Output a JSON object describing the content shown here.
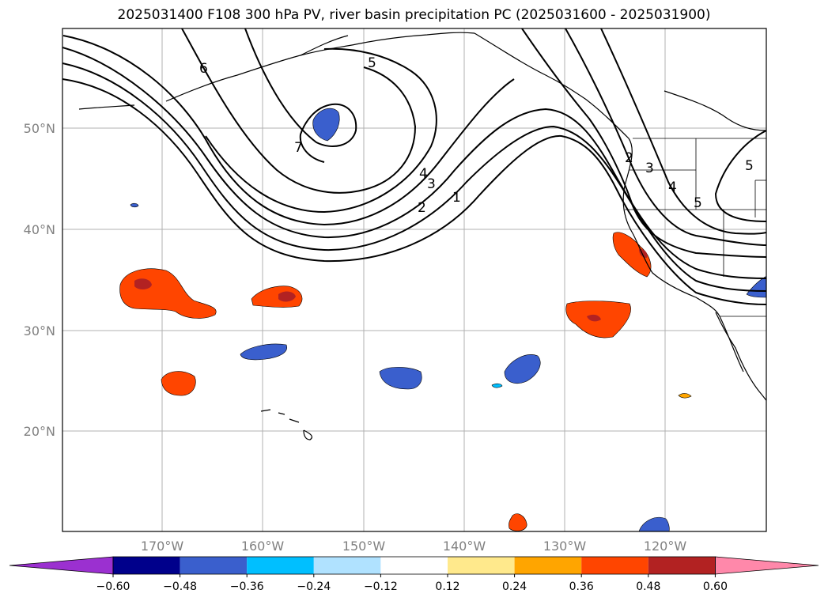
{
  "title": "2025031400 F108 300 hPa PV, river basin precipitation PC (2025031600 - 2025031900)",
  "lat_labels": [
    "50°N",
    "40°N",
    "30°N",
    "20°N"
  ],
  "lon_labels": [
    "170°W",
    "160°W",
    "150°W",
    "140°W",
    "130°W",
    "120°W"
  ],
  "contour_labels": [
    "6",
    "5",
    "7",
    "4",
    "3",
    "2",
    "1",
    "2",
    "3",
    "4",
    "5",
    "5"
  ],
  "colorbar": {
    "ticks": [
      "−0.60",
      "−0.48",
      "−0.36",
      "−0.24",
      "−0.12",
      "0.12",
      "0.24",
      "0.36",
      "0.48",
      "0.60"
    ],
    "colors": [
      "#9b30d0",
      "#00008b",
      "#3a5fcd",
      "#00bfff",
      "#b0e2ff",
      "#ffffff",
      "#ffe98c",
      "#ffa500",
      "#ff4500",
      "#b22222",
      "#ff88aa"
    ]
  }
}
